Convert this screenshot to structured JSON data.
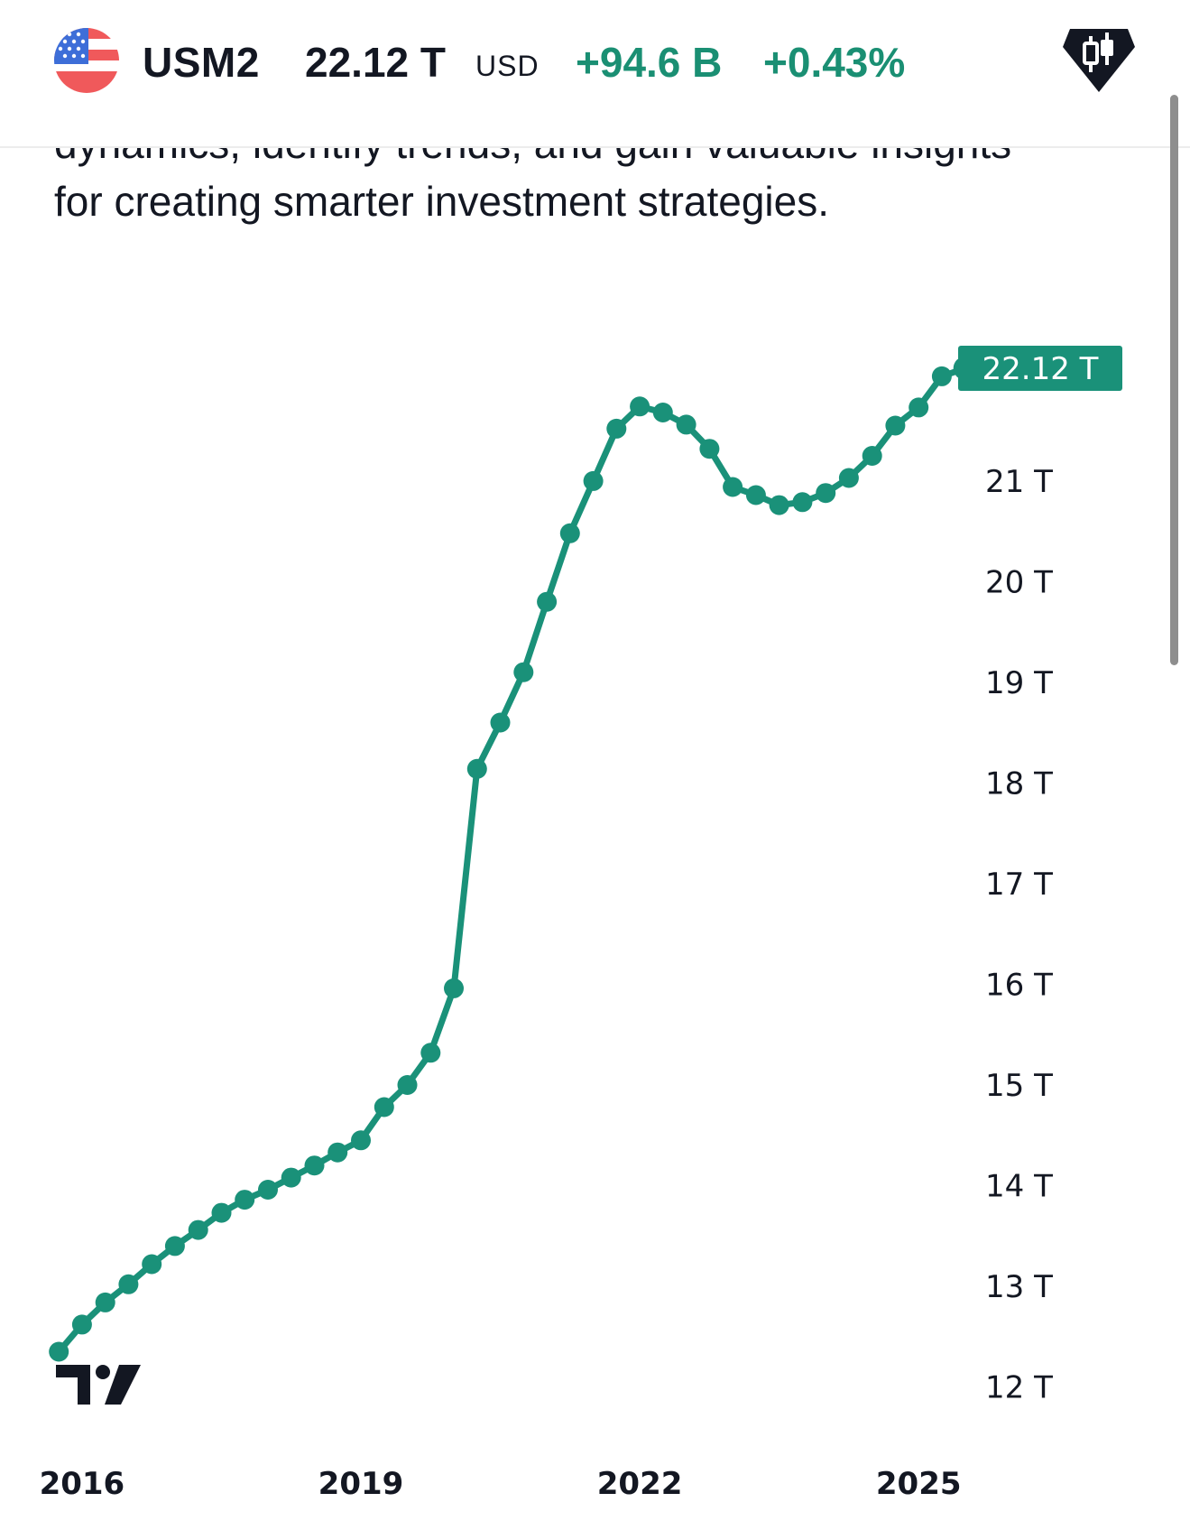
{
  "header": {
    "symbol": "USM2",
    "price": "22.12 T",
    "currency": "USD",
    "change": "+94.6 B",
    "change_percent": "+0.43%",
    "flag_icon": "us-flag-icon",
    "candle_icon": "candlestick-chart-icon"
  },
  "description": {
    "line_partial": "dynamics, identify trends, and gain valuable insights",
    "line_full": "for creating smarter investment strategies."
  },
  "chart_data": {
    "type": "line",
    "title": "USM2",
    "xlabel": "",
    "ylabel": "",
    "units": "T USD",
    "x": [
      2015.75,
      2016.0,
      2016.25,
      2016.5,
      2016.75,
      2017.0,
      2017.25,
      2017.5,
      2017.75,
      2018.0,
      2018.25,
      2018.5,
      2018.75,
      2019.0,
      2019.25,
      2019.5,
      2019.75,
      2020.0,
      2020.25,
      2020.5,
      2020.75,
      2021.0,
      2021.25,
      2021.5,
      2021.75,
      2022.0,
      2022.25,
      2022.5,
      2022.75,
      2023.0,
      2023.25,
      2023.5,
      2023.75,
      2024.0,
      2024.25,
      2024.5,
      2024.75,
      2025.0,
      2025.25,
      2025.5
    ],
    "values": [
      12.35,
      12.62,
      12.84,
      13.02,
      13.22,
      13.4,
      13.56,
      13.73,
      13.86,
      13.96,
      14.08,
      14.2,
      14.33,
      14.45,
      14.78,
      15.0,
      15.32,
      15.96,
      18.14,
      18.6,
      19.1,
      19.8,
      20.48,
      21.0,
      21.52,
      21.74,
      21.68,
      21.56,
      21.32,
      20.94,
      20.86,
      20.76,
      20.79,
      20.88,
      21.03,
      21.25,
      21.55,
      21.73,
      22.04,
      22.12
    ],
    "y_ticks": [
      "12 T",
      "13 T",
      "14 T",
      "15 T",
      "16 T",
      "17 T",
      "18 T",
      "19 T",
      "20 T",
      "21 T"
    ],
    "y_tick_values": [
      12,
      13,
      14,
      15,
      16,
      17,
      18,
      19,
      20,
      21
    ],
    "x_ticks": [
      "2016",
      "2019",
      "2022",
      "2025"
    ],
    "x_tick_values": [
      2016,
      2019,
      2022,
      2025
    ],
    "last_value_label": "22.12 T",
    "xlim": [
      2015.7,
      2025.6
    ],
    "ylim": [
      11.7,
      22.55
    ],
    "line_color": "#1a9179",
    "grid": false,
    "legend": "none"
  }
}
